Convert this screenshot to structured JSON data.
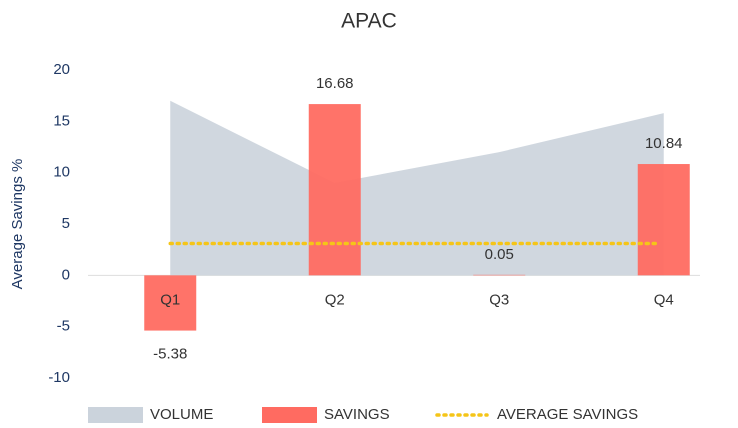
{
  "chart_data": {
    "type": "combo",
    "title": "APAC",
    "y_label": "Average Savings %",
    "categories": [
      "Q1",
      "Q2",
      "Q3",
      "Q4"
    ],
    "ylim": [
      -10,
      20
    ],
    "yticks": [
      -10,
      -5,
      0,
      5,
      10,
      15,
      20
    ],
    "series": [
      {
        "name": "VOLUME",
        "type": "area",
        "color": "#cbd3dc",
        "values": [
          17.0,
          9.0,
          12.0,
          15.8
        ]
      },
      {
        "name": "SAVINGS",
        "type": "bar",
        "color": "#ff6b61",
        "values": [
          -5.38,
          16.68,
          0.05,
          10.84
        ]
      },
      {
        "name": "AVERAGE SAVINGS",
        "type": "dotted-line",
        "color": "#f5c518",
        "values": [
          3.1,
          3.1,
          3.1,
          3.1
        ]
      }
    ]
  }
}
